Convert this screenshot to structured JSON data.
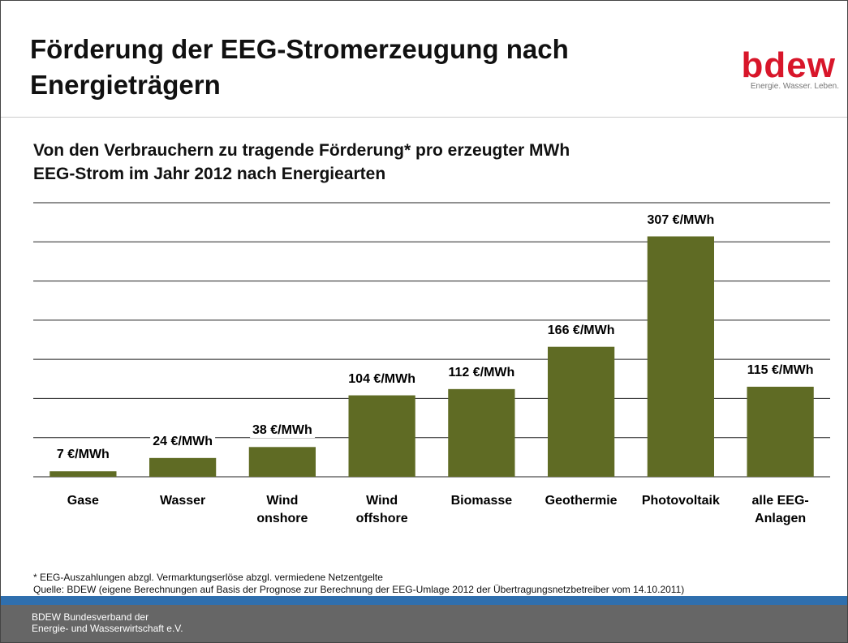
{
  "header": {
    "title": "Förderung der EEG-Stromerzeugung nach\nEnergieträgern",
    "logo": "bdew",
    "tagline": "Energie. Wasser. Leben."
  },
  "chart_data": {
    "type": "bar",
    "title": "Von den Verbrauchern zu tragende Förderung* pro erzeugter MWh\nEEG-Strom im Jahr 2012 nach Energiearten",
    "categories": [
      "Gase",
      "Wasser",
      "Wind\nonshore",
      "Wind\noffshore",
      "Biomasse",
      "Geothermie",
      "Photovoltaik",
      "alle EEG-\nAnlagen"
    ],
    "values": [
      7,
      24,
      38,
      104,
      112,
      166,
      307,
      115
    ],
    "value_labels": [
      "7 €/MWh",
      "24 €/MWh",
      "38 €/MWh",
      "104 €/MWh",
      "112 €/MWh",
      "166 €/MWh",
      "307 €/MWh",
      "115 €/MWh"
    ],
    "color": "#5f6b24",
    "ylim": [
      0,
      350
    ],
    "yticks": [
      0,
      50,
      100,
      150,
      200,
      250,
      300,
      350
    ],
    "grid": true
  },
  "notes": [
    "* EEG-Auszahlungen abzgl. Vermarktungserlöse abzgl. vermiedene Netzentgelte",
    "Quelle: BDEW (eigene Berechnungen auf Basis der Prognose zur Berechnung der EEG-Umlage 2012 der Übertragungsnetzbetreiber vom 14.10.2011)"
  ],
  "footer": "BDEW Bundesverband der\nEnergie- und Wasserwirtschaft e.V."
}
